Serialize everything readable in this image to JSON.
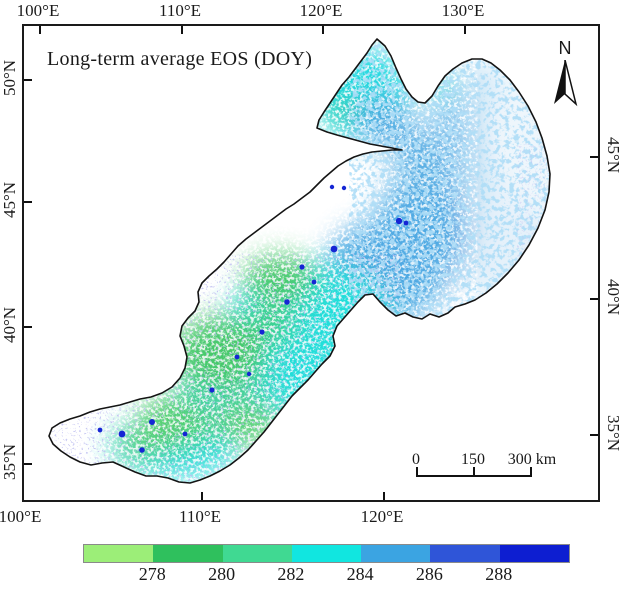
{
  "figure": {
    "title": "Long-term average EOS  (DOY)",
    "north_label": "N"
  },
  "axes": {
    "top_labels": [
      "100°E",
      "110°E",
      "120°E",
      "130°E"
    ],
    "bottom_labels": [
      "100°E",
      "110°E",
      "120°E"
    ],
    "left_labels": [
      "50°N",
      "45°N",
      "40°N",
      "35°N"
    ],
    "right_labels": [
      "45°N",
      "40°N",
      "35°N"
    ]
  },
  "scale_bar": {
    "labels": [
      "0",
      "150",
      "300 km"
    ]
  },
  "colorbar": {
    "tick_labels": [
      "278",
      "280",
      "282",
      "284",
      "286",
      "288"
    ],
    "segment_colors": [
      "#9cee78",
      "#2fc05d",
      "#40d992",
      "#11e6e0",
      "#3ba4e2",
      "#2f55d8",
      "#0d1ed1"
    ],
    "border_color": "#8a8a8a"
  },
  "map_style": {
    "outline_color": "#141414",
    "background_color": "#ffffff"
  }
}
